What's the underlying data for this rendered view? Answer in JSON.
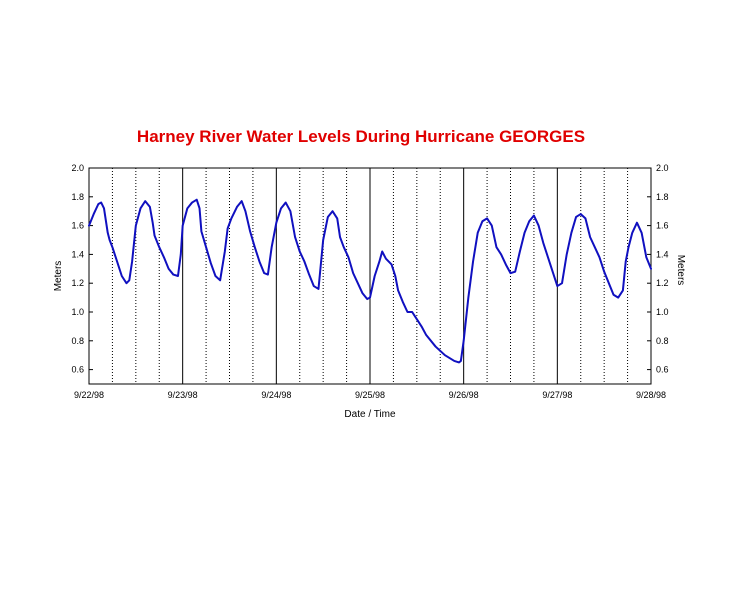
{
  "chart_data": {
    "type": "line",
    "title": "Harney River Water Levels During Hurricane GEORGES",
    "xlabel": "Date / Time",
    "ylabel": "Meters",
    "ylabel_right": "Meters",
    "xlim": [
      0,
      6
    ],
    "ylim": [
      0.5,
      2.0
    ],
    "y_ticks": [
      0.6,
      0.8,
      1.0,
      1.2,
      1.4,
      1.6,
      1.8,
      2.0
    ],
    "y_tick_labels": [
      "0.6",
      "0.8",
      "1.0",
      "1.2",
      "1.4",
      "1.6",
      "1.8",
      "2.0"
    ],
    "x_ticks": [
      0,
      1,
      2,
      3,
      4,
      5,
      6
    ],
    "x_tick_labels": [
      "9/22/98",
      "9/23/98",
      "9/24/98",
      "9/25/98",
      "9/26/98",
      "9/27/98",
      "9/28/98"
    ],
    "major_gridlines_x": [
      1,
      2,
      3,
      4,
      5
    ],
    "minor_gridlines_x": [
      0.25,
      0.5,
      0.75,
      1.25,
      1.5,
      1.75,
      2.25,
      2.5,
      2.75,
      3.25,
      3.5,
      3.75,
      4.25,
      4.5,
      4.75,
      5.25,
      5.5,
      5.75
    ],
    "line_color": "#1010c0",
    "series": [
      {
        "x": [
          0.0,
          0.05,
          0.1,
          0.13,
          0.16,
          0.2,
          0.22,
          0.25,
          0.3,
          0.35,
          0.4,
          0.43,
          0.46,
          0.5,
          0.55,
          0.6,
          0.65,
          0.68,
          0.7,
          0.75,
          0.8,
          0.85,
          0.9,
          0.95,
          0.98,
          1.0,
          1.05,
          1.1,
          1.15,
          1.18,
          1.2,
          1.25,
          1.3,
          1.35,
          1.4,
          1.45,
          1.48,
          1.52,
          1.58,
          1.63,
          1.67,
          1.72,
          1.77,
          1.82,
          1.87,
          1.91,
          1.95,
          2.0,
          2.05,
          2.1,
          2.15,
          2.2,
          2.25,
          2.3,
          2.35,
          2.4,
          2.45,
          2.5,
          2.55,
          2.6,
          2.65,
          2.68,
          2.72,
          2.77,
          2.82,
          2.87,
          2.92,
          2.97,
          3.0,
          3.05,
          3.1,
          3.13,
          3.17,
          3.2,
          3.23,
          3.27,
          3.3,
          3.35,
          3.4,
          3.45,
          3.5,
          3.55,
          3.6,
          3.7,
          3.8,
          3.9,
          3.95,
          3.97,
          4.0,
          4.05,
          4.1,
          4.15,
          4.2,
          4.25,
          4.3,
          4.35,
          4.4,
          4.45,
          4.5,
          4.55,
          4.6,
          4.65,
          4.7,
          4.75,
          4.8,
          4.85,
          4.9,
          4.95,
          5.0,
          5.05,
          5.1,
          5.15,
          5.2,
          5.25,
          5.3,
          5.35,
          5.4,
          5.45,
          5.5,
          5.55,
          5.6,
          5.65,
          5.7,
          5.73,
          5.76,
          5.8,
          5.85,
          5.9,
          5.95,
          6.0
        ],
        "y": [
          1.6,
          1.68,
          1.75,
          1.76,
          1.72,
          1.55,
          1.5,
          1.45,
          1.35,
          1.25,
          1.2,
          1.22,
          1.35,
          1.6,
          1.72,
          1.77,
          1.73,
          1.62,
          1.53,
          1.45,
          1.38,
          1.3,
          1.26,
          1.25,
          1.4,
          1.6,
          1.72,
          1.76,
          1.78,
          1.72,
          1.56,
          1.45,
          1.34,
          1.25,
          1.22,
          1.42,
          1.58,
          1.65,
          1.73,
          1.77,
          1.7,
          1.56,
          1.45,
          1.35,
          1.27,
          1.26,
          1.45,
          1.62,
          1.72,
          1.76,
          1.7,
          1.52,
          1.42,
          1.35,
          1.26,
          1.18,
          1.16,
          1.5,
          1.66,
          1.7,
          1.65,
          1.52,
          1.45,
          1.38,
          1.27,
          1.2,
          1.13,
          1.09,
          1.1,
          1.25,
          1.35,
          1.42,
          1.37,
          1.35,
          1.33,
          1.25,
          1.15,
          1.07,
          1.0,
          1.0,
          0.95,
          0.9,
          0.84,
          0.76,
          0.7,
          0.66,
          0.65,
          0.66,
          0.8,
          1.1,
          1.35,
          1.55,
          1.63,
          1.65,
          1.6,
          1.45,
          1.4,
          1.33,
          1.27,
          1.28,
          1.42,
          1.55,
          1.63,
          1.67,
          1.6,
          1.48,
          1.38,
          1.28,
          1.18,
          1.2,
          1.4,
          1.55,
          1.66,
          1.68,
          1.65,
          1.52,
          1.45,
          1.38,
          1.28,
          1.2,
          1.12,
          1.1,
          1.15,
          1.35,
          1.45,
          1.55,
          1.62,
          1.55,
          1.38,
          1.3
        ]
      }
    ]
  }
}
